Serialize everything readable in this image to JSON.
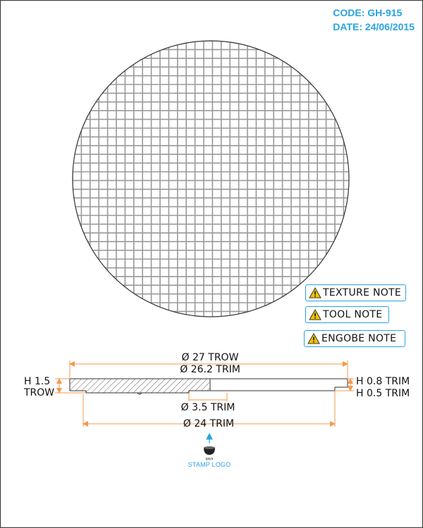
{
  "header": {
    "code": "CODE: GH-915",
    "date": "DATE: 24/06/2015"
  },
  "notes": [
    {
      "label": "TEXTURE NOTE"
    },
    {
      "label": "TOOL NOTE"
    },
    {
      "label": "ENGOBE NOTE"
    }
  ],
  "dimensions": {
    "trow_diameter": "Ø 27 TROW",
    "trim_diameter": "Ø 26.2 TRIM",
    "height_left_top": "H 1.5",
    "height_left_bottom": "TROW",
    "height_right_top": "H 0.8 TRIM",
    "height_right_bottom": "H 0.5 TRIM",
    "foot_diameter": "Ø 3.5 TRIM",
    "base_diameter": "Ø 24 TRIM"
  },
  "stamp": {
    "logo_text": "gaya",
    "label": "STAMP LOGO"
  },
  "colors": {
    "accent": "#29a3e0",
    "dimension": "#f39a4a",
    "line": "#333333",
    "grid": "#9a9a9a",
    "warning": "#f5c400"
  },
  "icons": {
    "note": "warning-triangle-icon",
    "stamp": "stamp-icon",
    "arrow": "arrow-up-icon"
  }
}
